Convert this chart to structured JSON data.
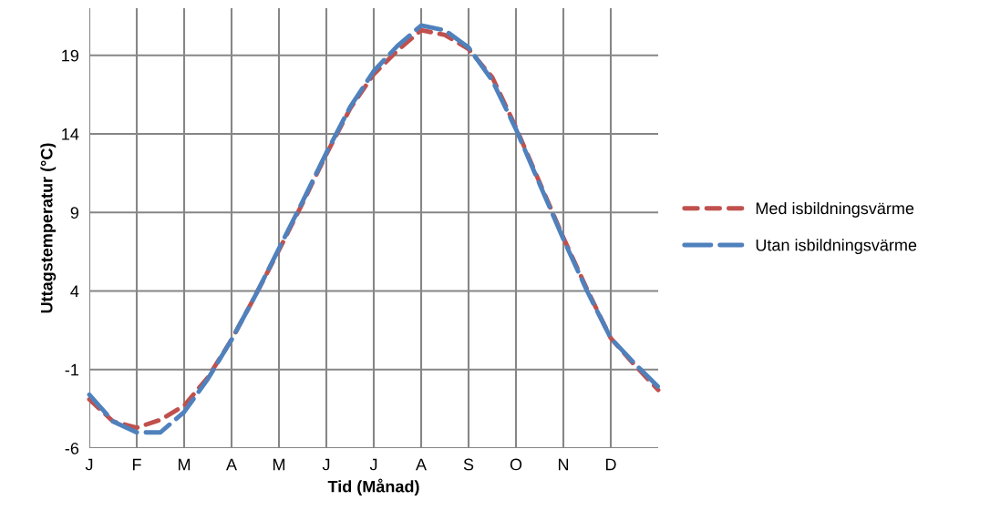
{
  "chart_data": {
    "type": "line",
    "xlabel": "Tid (Månad)",
    "ylabel": "Uttagstemperatur (°C)",
    "categories": [
      "J",
      null,
      "F",
      null,
      "M",
      null,
      "A",
      null,
      "M",
      null,
      "J",
      null,
      "J",
      null,
      "A",
      null,
      "S",
      null,
      "O",
      null,
      "N",
      null,
      "D",
      null,
      null
    ],
    "ylim": [
      -6,
      22
    ],
    "yticks": [
      -6,
      -1,
      4,
      9,
      14,
      19
    ],
    "grid": true,
    "legend": "right",
    "line_style": "dashed",
    "series": [
      {
        "name": "Med isbildningsvärme",
        "color": "#c0504d",
        "values": [
          -2.9,
          -4.3,
          -4.7,
          -4.2,
          -3.3,
          -1.5,
          0.9,
          3.7,
          6.6,
          9.6,
          12.7,
          15.6,
          17.8,
          19.3,
          20.6,
          20.3,
          19.4,
          17.6,
          14.4,
          10.9,
          7.4,
          4.1,
          1.0,
          -0.7,
          -2.3
        ]
      },
      {
        "name": "Utan isbildningsvärme",
        "color": "#4f81bd",
        "values": [
          -2.6,
          -4.3,
          -5.0,
          -5.0,
          -3.7,
          -1.6,
          0.9,
          3.7,
          6.7,
          9.7,
          12.8,
          15.7,
          18.0,
          19.6,
          20.9,
          20.6,
          19.5,
          17.4,
          14.3,
          10.8,
          7.3,
          4.0,
          1.0,
          -0.6,
          -2.1
        ]
      }
    ]
  }
}
